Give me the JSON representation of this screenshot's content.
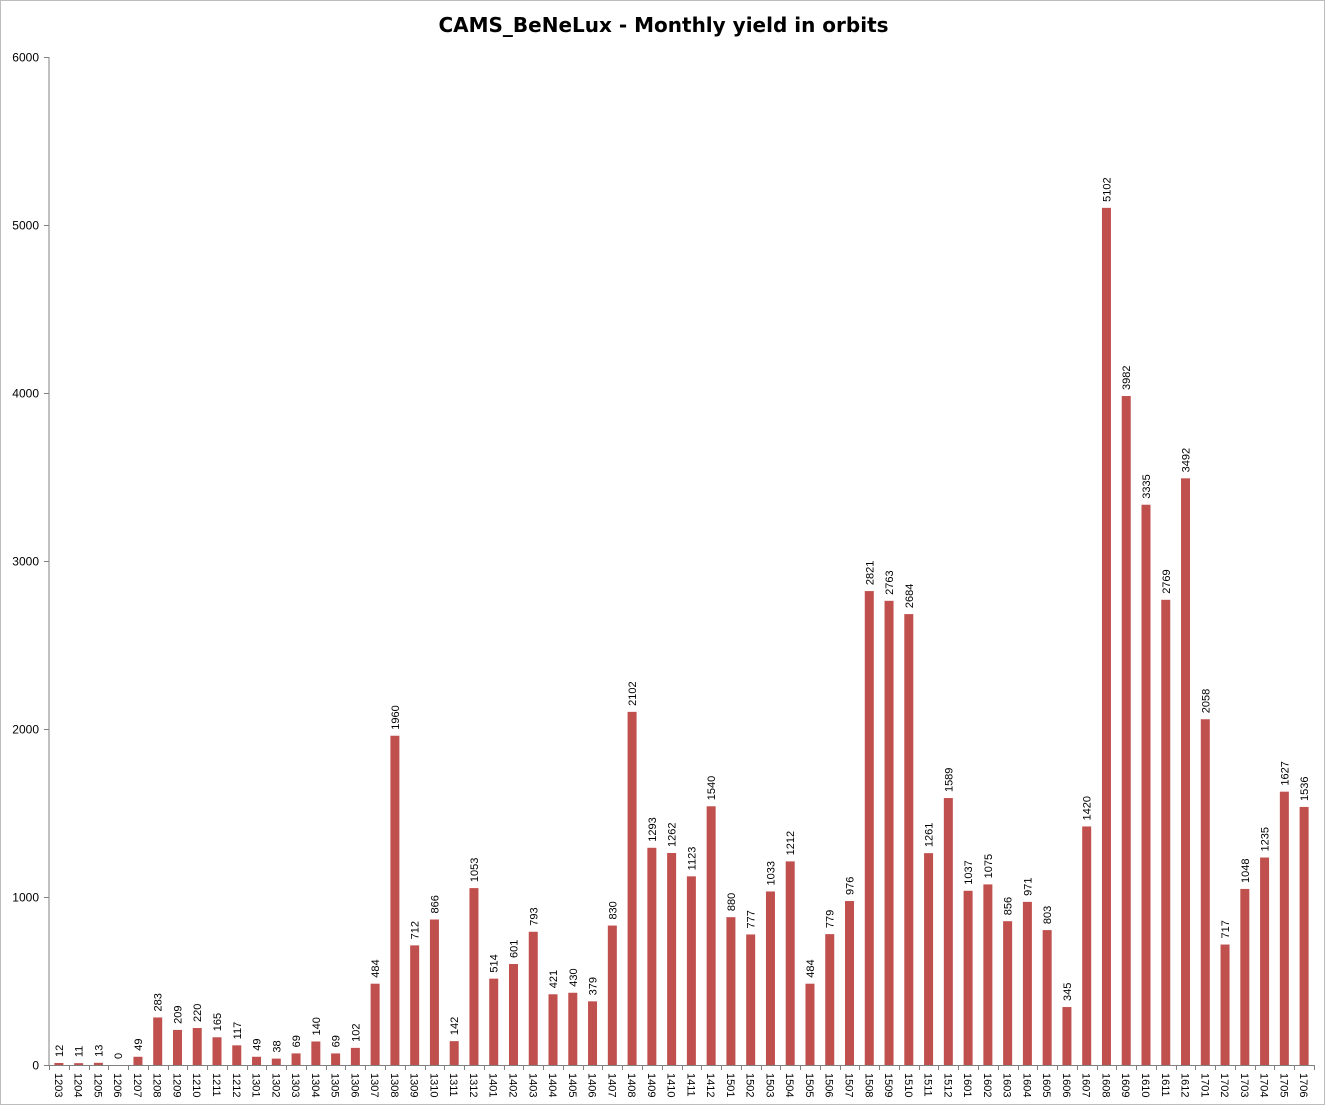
{
  "chart_data": {
    "type": "bar",
    "title": "CAMS_BeNeLux - Monthly yield in orbits",
    "xlabel": "",
    "ylabel": "",
    "ylim": [
      0,
      6000
    ],
    "yticks": [
      0,
      1000,
      2000,
      3000,
      4000,
      5000,
      6000
    ],
    "grid": false,
    "legend": "none",
    "bar_color": "#c0504d",
    "categories": [
      "1203",
      "1204",
      "1205",
      "1206",
      "1207",
      "1208",
      "1209",
      "1210",
      "1211",
      "1212",
      "1301",
      "1302",
      "1303",
      "1304",
      "1305",
      "1306",
      "1307",
      "1308",
      "1309",
      "1310",
      "1311",
      "1312",
      "1401",
      "1402",
      "1403",
      "1404",
      "1405",
      "1406",
      "1407",
      "1408",
      "1409",
      "1410",
      "1411",
      "1412",
      "1501",
      "1502",
      "1503",
      "1504",
      "1505",
      "1506",
      "1507",
      "1508",
      "1509",
      "1510",
      "1511",
      "1512",
      "1601",
      "1602",
      "1603",
      "1604",
      "1605",
      "1606",
      "1607",
      "1608",
      "1609",
      "1610",
      "1611",
      "1612",
      "1701",
      "1702",
      "1703",
      "1704",
      "1705",
      "1706"
    ],
    "values": [
      12,
      11,
      13,
      0,
      49,
      283,
      209,
      220,
      165,
      117,
      49,
      38,
      69,
      140,
      69,
      102,
      484,
      1960,
      712,
      866,
      142,
      1053,
      514,
      601,
      793,
      421,
      430,
      379,
      830,
      2102,
      1293,
      1262,
      1123,
      1540,
      880,
      777,
      1033,
      1212,
      484,
      779,
      976,
      2821,
      2763,
      2684,
      1261,
      1589,
      1037,
      1075,
      856,
      971,
      803,
      345,
      1420,
      5102,
      3982,
      3335,
      2769,
      3492,
      2058,
      717,
      1048,
      1235,
      1627,
      1536
    ]
  }
}
